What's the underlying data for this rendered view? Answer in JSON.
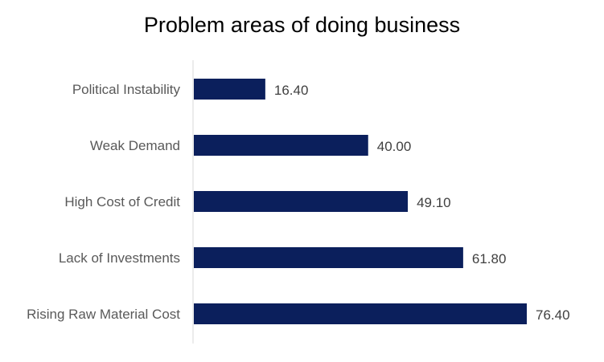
{
  "chart_data": {
    "type": "bar",
    "orientation": "horizontal",
    "title": "Problem areas of doing business",
    "categories": [
      "Political Instability",
      "Weak Demand",
      "High Cost of Credit",
      "Lack of Investments",
      "Rising Raw Material Cost"
    ],
    "values": [
      16.4,
      40.0,
      49.1,
      61.8,
      76.4
    ],
    "data_labels": [
      "16.40",
      "40.00",
      "49.10",
      "61.80",
      "76.40"
    ],
    "xlim": [
      0,
      76.4
    ],
    "grid": false,
    "legend": "none",
    "bar_color": "#0b1f5c"
  }
}
